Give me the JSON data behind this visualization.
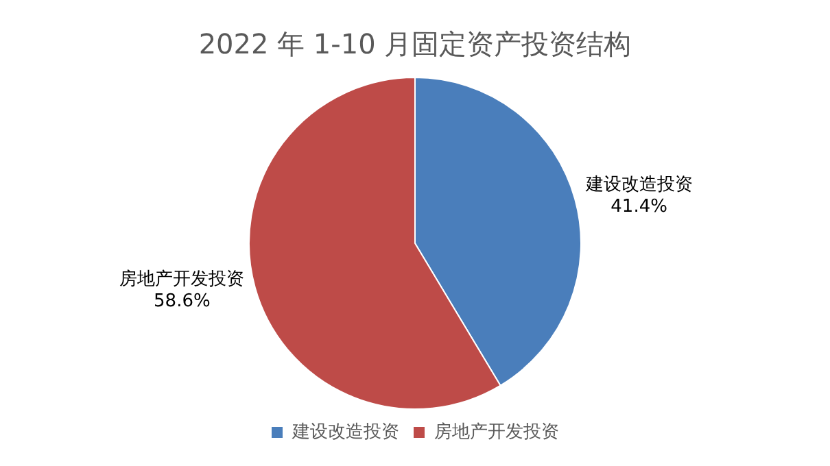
{
  "chart_data": {
    "type": "pie",
    "title": "2022 年 1-10 月固定资产投资结构",
    "categories": [
      "建设改造投资",
      "房地产开发投资"
    ],
    "values": [
      41.4,
      58.6
    ],
    "colors": [
      "#4a7ebb",
      "#be4b48"
    ],
    "value_labels": [
      "41.4%",
      "58.6%"
    ],
    "legend": "bottom"
  }
}
